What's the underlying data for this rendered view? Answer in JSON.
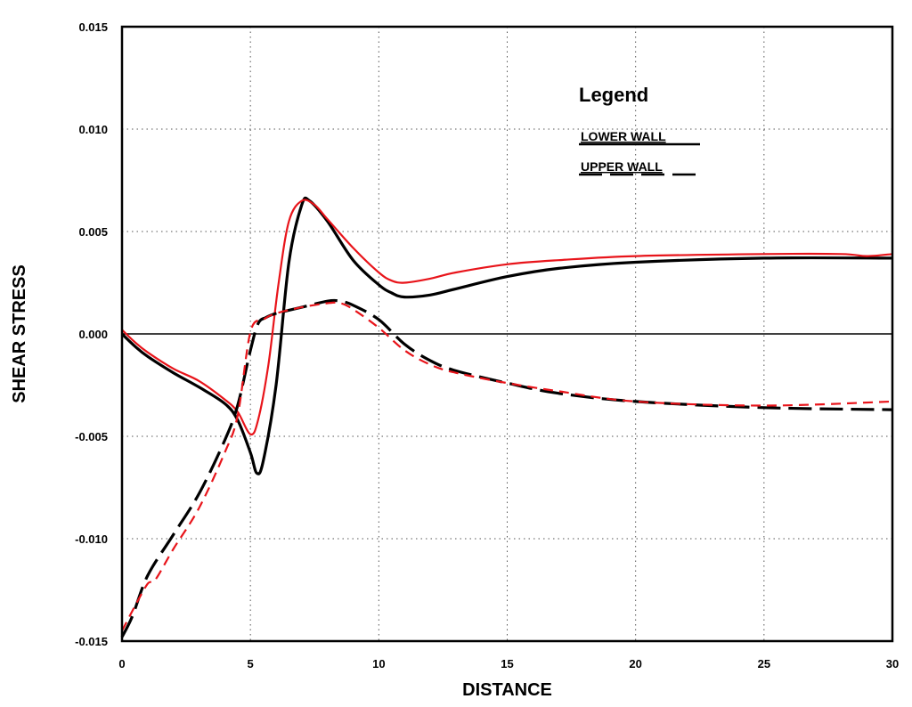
{
  "chart_data": {
    "type": "line",
    "title": "",
    "xlabel": "DISTANCE",
    "ylabel": "SHEAR STRESS",
    "xlim": [
      0,
      30
    ],
    "ylim": [
      -0.015,
      0.015
    ],
    "x_ticks": [
      "0",
      "5",
      "10",
      "15",
      "20",
      "25",
      "30"
    ],
    "x_tick_values": [
      0,
      5,
      10,
      15,
      20,
      25,
      30
    ],
    "y_ticks": [
      "-0.015",
      "-0.010",
      "-0.005",
      "0.000",
      "0.005",
      "0.010",
      "0.015"
    ],
    "y_tick_values": [
      -0.015,
      -0.01,
      -0.005,
      0,
      0.005,
      0.01,
      0.015
    ],
    "grid": true,
    "zero_line": true,
    "legend": {
      "title": "Legend",
      "placement": "top-right",
      "entries": [
        "LOWER WALL",
        "UPPER WALL"
      ]
    },
    "colors": {
      "black": "#000000",
      "red": "#e8141a",
      "grid": "#555555"
    },
    "series": [
      {
        "name": "LOWER WALL",
        "color": "#000000",
        "dash": "solid",
        "points": [
          [
            0,
            0.0
          ],
          [
            0.5,
            -0.0006
          ],
          [
            1,
            -0.0011
          ],
          [
            2,
            -0.0019
          ],
          [
            3,
            -0.0026
          ],
          [
            4,
            -0.0034
          ],
          [
            4.5,
            -0.0042
          ],
          [
            5,
            -0.0058
          ],
          [
            5.25,
            -0.0068
          ],
          [
            5.5,
            -0.0062
          ],
          [
            6,
            -0.0025
          ],
          [
            6.5,
            0.0035
          ],
          [
            7,
            0.0063
          ],
          [
            7.3,
            0.0065
          ],
          [
            8,
            0.0055
          ],
          [
            9,
            0.0036
          ],
          [
            10,
            0.0024
          ],
          [
            10.5,
            0.002
          ],
          [
            11,
            0.0018
          ],
          [
            12,
            0.0019
          ],
          [
            13,
            0.0022
          ],
          [
            15,
            0.0028
          ],
          [
            17,
            0.0032
          ],
          [
            20,
            0.0035
          ],
          [
            25,
            0.0037
          ],
          [
            30,
            0.0037
          ]
        ]
      },
      {
        "name": "LOWER WALL",
        "color": "#e8141a",
        "dash": "solid",
        "points": [
          [
            0,
            0.0002
          ],
          [
            0.5,
            -0.0004
          ],
          [
            1,
            -0.0009
          ],
          [
            2,
            -0.0017
          ],
          [
            3,
            -0.0023
          ],
          [
            4,
            -0.0032
          ],
          [
            4.5,
            -0.0038
          ],
          [
            5,
            -0.0049
          ],
          [
            5.3,
            -0.0042
          ],
          [
            5.7,
            -0.0015
          ],
          [
            6.1,
            0.0025
          ],
          [
            6.5,
            0.0055
          ],
          [
            7,
            0.0065
          ],
          [
            7.5,
            0.0063
          ],
          [
            8,
            0.0056
          ],
          [
            9,
            0.0042
          ],
          [
            10,
            0.003
          ],
          [
            10.5,
            0.0026
          ],
          [
            11,
            0.0025
          ],
          [
            12,
            0.0027
          ],
          [
            13,
            0.003
          ],
          [
            15,
            0.0034
          ],
          [
            17,
            0.0036
          ],
          [
            20,
            0.0038
          ],
          [
            25,
            0.0039
          ],
          [
            28,
            0.0039
          ],
          [
            29,
            0.0038
          ],
          [
            30,
            0.0039
          ]
        ]
      },
      {
        "name": "UPPER WALL",
        "color": "#000000",
        "dash": "dashed",
        "points": [
          [
            0,
            -0.0148
          ],
          [
            0.4,
            -0.0138
          ],
          [
            1,
            -0.0118
          ],
          [
            2,
            -0.0098
          ],
          [
            3,
            -0.0078
          ],
          [
            4,
            -0.0052
          ],
          [
            4.5,
            -0.0035
          ],
          [
            5,
            -0.0008
          ],
          [
            5.3,
            0.0005
          ],
          [
            5.6,
            0.0008
          ],
          [
            6,
            0.001
          ],
          [
            7,
            0.0013
          ],
          [
            8,
            0.0016
          ],
          [
            8.5,
            0.0016
          ],
          [
            9,
            0.0014
          ],
          [
            10,
            0.0007
          ],
          [
            11,
            -0.0005
          ],
          [
            12,
            -0.0013
          ],
          [
            13,
            -0.0018
          ],
          [
            15,
            -0.0024
          ],
          [
            17,
            -0.0029
          ],
          [
            20,
            -0.0033
          ],
          [
            25,
            -0.0036
          ],
          [
            30,
            -0.0037
          ]
        ]
      },
      {
        "name": "UPPER WALL",
        "color": "#e8141a",
        "dash": "dashed",
        "points": [
          [
            0,
            -0.0145
          ],
          [
            0.5,
            -0.0133
          ],
          [
            1,
            -0.0122
          ],
          [
            1.3,
            -0.012
          ],
          [
            2,
            -0.0105
          ],
          [
            3,
            -0.0085
          ],
          [
            4,
            -0.0058
          ],
          [
            4.5,
            -0.004
          ],
          [
            5,
            0.0001
          ],
          [
            5.5,
            0.0007
          ],
          [
            6,
            0.001
          ],
          [
            7,
            0.0013
          ],
          [
            8,
            0.0015
          ],
          [
            8.5,
            0.0015
          ],
          [
            9,
            0.0012
          ],
          [
            10,
            0.0003
          ],
          [
            11,
            -0.0008
          ],
          [
            12,
            -0.0015
          ],
          [
            13,
            -0.0019
          ],
          [
            15,
            -0.0024
          ],
          [
            17,
            -0.0028
          ],
          [
            20,
            -0.0033
          ],
          [
            25,
            -0.0035
          ],
          [
            30,
            -0.0033
          ]
        ]
      }
    ]
  }
}
